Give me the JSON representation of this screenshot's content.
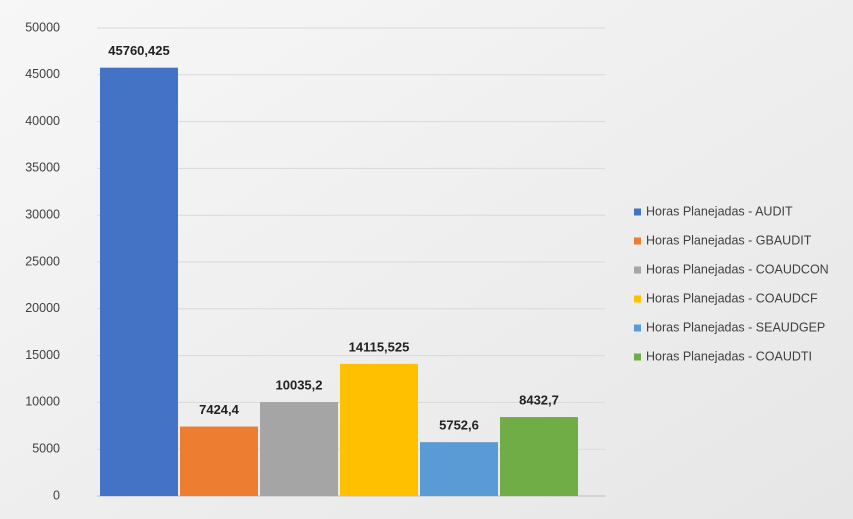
{
  "chart_data": {
    "type": "bar",
    "categories": [
      null
    ],
    "series": [
      {
        "name": "Horas Planejadas - AUDIT",
        "color": "#4472c4",
        "values": [
          45760.425
        ],
        "value_labels": [
          "45760,425"
        ]
      },
      {
        "name": "Horas Planejadas - GBAUDIT",
        "color": "#ed7d31",
        "values": [
          7424.4
        ],
        "value_labels": [
          "7424,4"
        ]
      },
      {
        "name": "Horas Planejadas - COAUDCON",
        "color": "#a5a5a5",
        "values": [
          10035.2
        ],
        "value_labels": [
          "10035,2"
        ]
      },
      {
        "name": "Horas Planejadas - COAUDCF",
        "color": "#ffc000",
        "values": [
          14115.525
        ],
        "value_labels": [
          "14115,525"
        ]
      },
      {
        "name": "Horas Planejadas - SEAUDGEP",
        "color": "#5b9bd5",
        "values": [
          5752.6
        ],
        "value_labels": [
          "5752,6"
        ]
      },
      {
        "name": "Horas Planejadas - COAUDTI",
        "color": "#70ad47",
        "values": [
          8432.7
        ],
        "value_labels": [
          "8432,7"
        ]
      }
    ],
    "ylim": [
      0,
      50000
    ],
    "yticks": [
      0,
      5000,
      10000,
      15000,
      20000,
      25000,
      30000,
      35000,
      40000,
      45000,
      50000
    ],
    "grid": true,
    "legend": "right"
  }
}
